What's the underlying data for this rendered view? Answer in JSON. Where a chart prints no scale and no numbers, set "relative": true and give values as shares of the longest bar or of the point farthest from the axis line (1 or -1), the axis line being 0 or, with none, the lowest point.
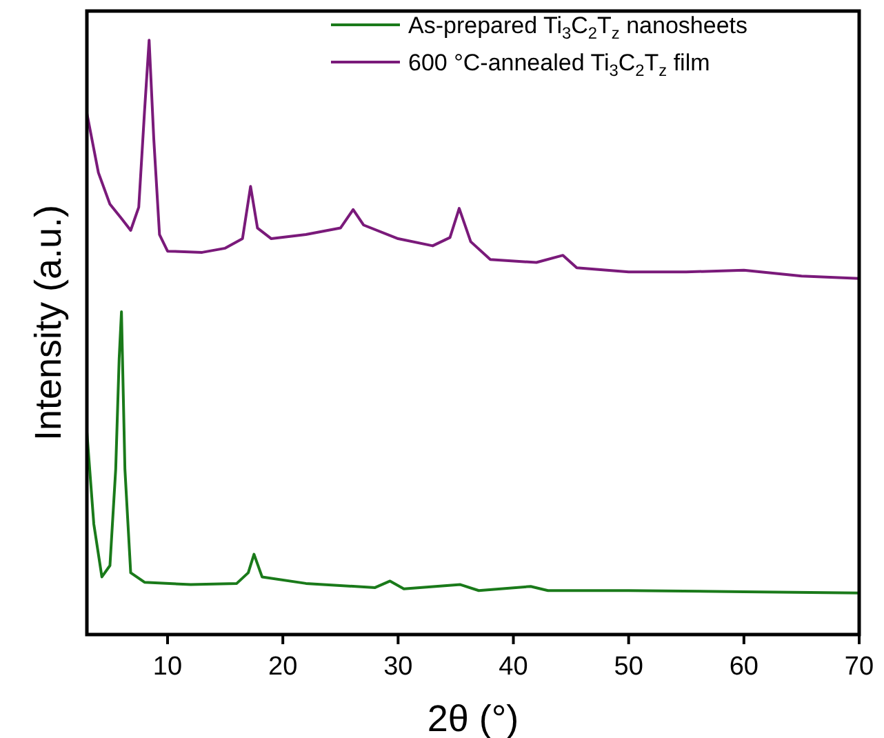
{
  "chart_data": {
    "type": "line",
    "relative": true,
    "xlabel": "2θ (°)",
    "ylabel": "Intensity (a.u.)",
    "xlim": [
      3,
      70
    ],
    "xticks": [
      10,
      20,
      30,
      40,
      50,
      60,
      70
    ],
    "grid": false,
    "legend": "top right",
    "marker": "none",
    "line_style": "solid",
    "series": [
      {
        "name": "As-prepared Ti$_{3}$C$_{2}$T$_{z}$ nanosheets",
        "color": "#1a7a1a",
        "x": [
          3,
          3.6,
          4.3,
          5,
          5.5,
          5.8,
          6.0,
          6.3,
          6.8,
          8,
          12,
          16,
          17,
          17.5,
          18.2,
          22,
          28,
          29.3,
          30.5,
          35.4,
          37,
          41.5,
          43,
          50,
          60,
          70
        ],
        "values": [
          0.341,
          0.186,
          0.097,
          0.116,
          0.278,
          0.464,
          0.543,
          0.278,
          0.104,
          0.088,
          0.084,
          0.086,
          0.104,
          0.135,
          0.097,
          0.086,
          0.079,
          0.09,
          0.077,
          0.084,
          0.074,
          0.081,
          0.074,
          0.074,
          0.072,
          0.07
        ]
      },
      {
        "name": "600 °C-annealed Ti$_{3}$C$_{2}$T$_{z}$ film",
        "color": "#7a1a7a",
        "x": [
          3,
          4,
          5,
          6,
          6.8,
          7.5,
          8.0,
          8.4,
          8.8,
          9.3,
          10,
          13,
          15,
          16.5,
          17.2,
          17.8,
          19,
          22,
          25,
          26.1,
          27,
          30,
          33,
          34.5,
          35.3,
          36.3,
          38,
          42,
          44.3,
          45.5,
          50,
          55,
          60,
          65,
          70
        ],
        "values": [
          0.877,
          0.777,
          0.724,
          0.7,
          0.68,
          0.719,
          0.88,
          1,
          0.835,
          0.673,
          0.645,
          0.643,
          0.65,
          0.666,
          0.754,
          0.684,
          0.666,
          0.673,
          0.684,
          0.715,
          0.689,
          0.666,
          0.654,
          0.668,
          0.717,
          0.661,
          0.631,
          0.626,
          0.638,
          0.617,
          0.61,
          0.61,
          0.613,
          0.603,
          0.599
        ]
      }
    ]
  }
}
